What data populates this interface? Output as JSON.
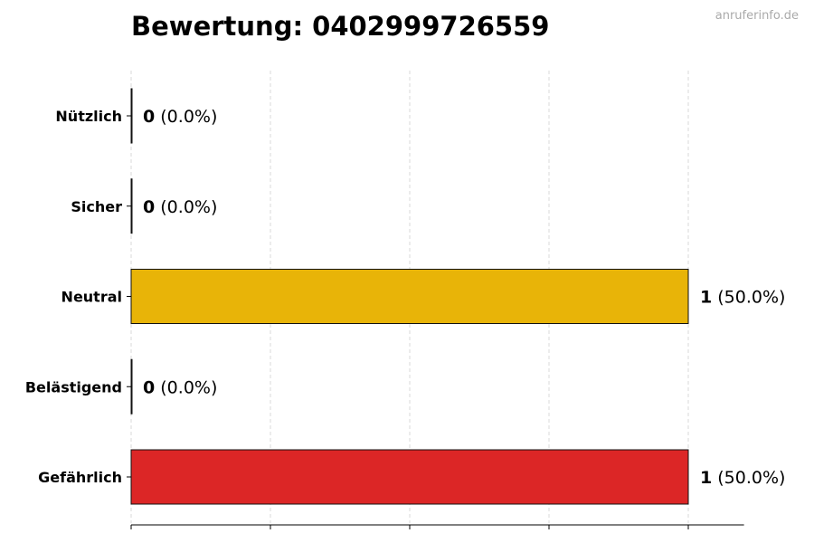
{
  "watermark": "anruferinfo.de",
  "chart_data": {
    "type": "bar",
    "orientation": "horizontal",
    "title": "Bewertung: 0402999726559",
    "xlabel": "",
    "ylabel": "",
    "xlim": [
      0,
      1.1
    ],
    "grid": "vertical-dashed",
    "categories": [
      "Nützlich",
      "Sicher",
      "Neutral",
      "Belästigend",
      "Gefährlich"
    ],
    "values": [
      0,
      0,
      1,
      0,
      1
    ],
    "percent_labels": [
      "(0.0%)",
      "(0.0%)",
      "(50.0%)",
      "(0.0%)",
      "(50.0%)"
    ],
    "colors": [
      "#22a05a",
      "#2f7fd0",
      "#e8b408",
      "#f07a1a",
      "#dc2626"
    ]
  }
}
